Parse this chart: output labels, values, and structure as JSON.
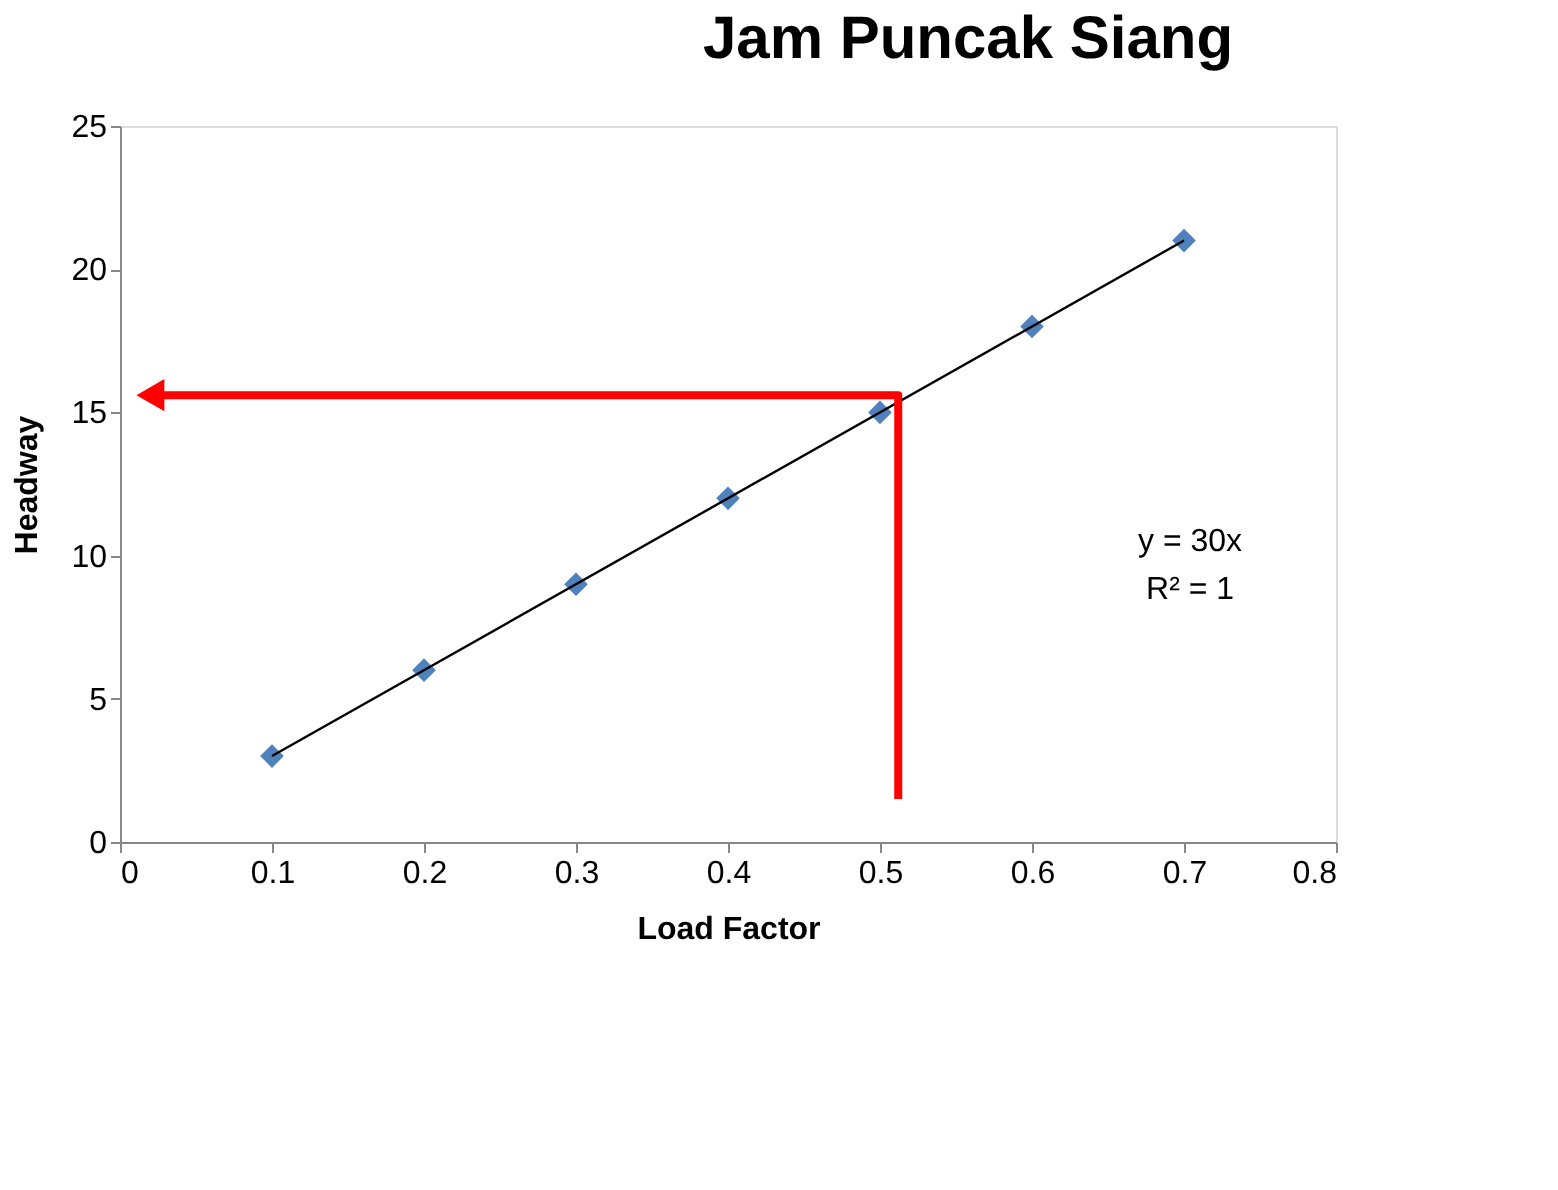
{
  "chart_data": {
    "type": "scatter",
    "title": "Jam Puncak Siang",
    "xlabel": "Load Factor",
    "ylabel": "Headway",
    "x": [
      0.1,
      0.2,
      0.3,
      0.4,
      0.5,
      0.6,
      0.7
    ],
    "series": [
      {
        "color": "#4f81bd",
        "marker": "diamond",
        "values": [
          3,
          6,
          9,
          12,
          15,
          18,
          21
        ]
      },
      {
        "type": "line",
        "color": "#000000",
        "x": [
          0.1,
          0.7
        ],
        "values": [
          3,
          21
        ]
      }
    ],
    "annotations": [
      "y = 30x",
      "R² = 1"
    ],
    "xlim": [
      0,
      0.8
    ],
    "xticks": [
      0,
      0.1,
      0.2,
      0.3,
      0.4,
      0.5,
      0.6,
      0.7,
      0.8
    ],
    "ylim": [
      0,
      25
    ],
    "yticks": [
      0,
      5,
      10,
      15,
      20,
      25
    ],
    "grid": false
  }
}
